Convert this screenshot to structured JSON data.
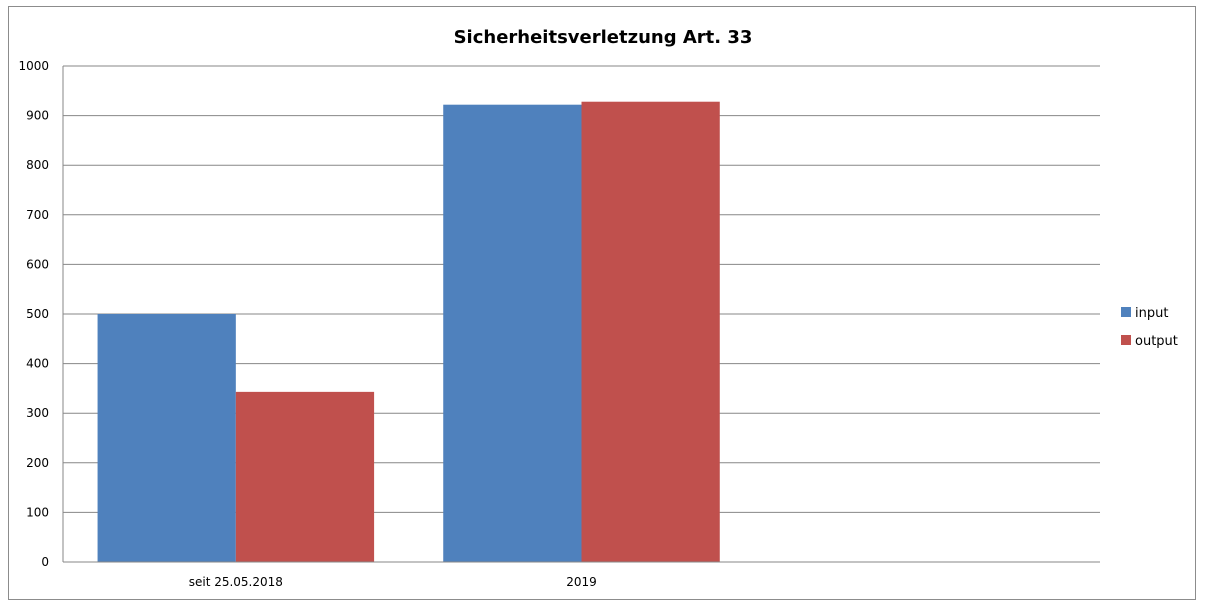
{
  "chart_data": {
    "type": "bar",
    "title": "Sicherheitsverletzung Art. 33",
    "categories": [
      "seit 25.05.2018",
      "2019",
      ""
    ],
    "series": [
      {
        "name": "input",
        "color": "#4F81BD",
        "values": [
          500,
          922,
          null
        ]
      },
      {
        "name": "output",
        "color": "#C0504D",
        "values": [
          343,
          928,
          null
        ]
      }
    ],
    "ylim": [
      0,
      1000
    ],
    "yticks": [
      0,
      100,
      200,
      300,
      400,
      500,
      600,
      700,
      800,
      900,
      1000
    ],
    "grid": true,
    "legend_position": "right"
  }
}
